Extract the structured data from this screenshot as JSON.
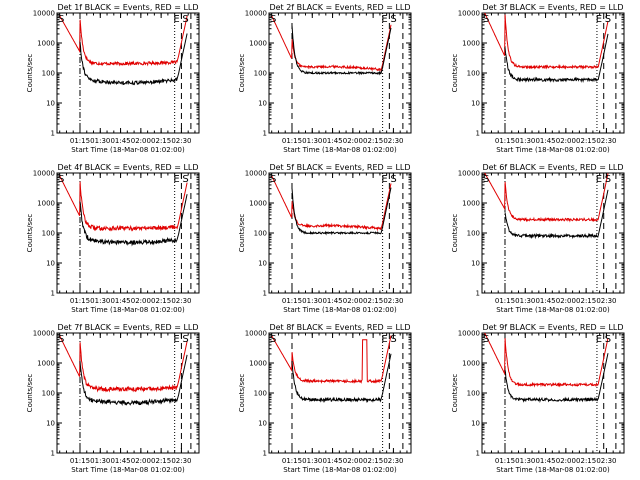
{
  "chart_data": {
    "type": "line",
    "colors": {
      "events": "#000000",
      "lld": "#e00000"
    },
    "x_tick_labels": [
      "01:15",
      "01:30",
      "01:45",
      "02:00",
      "02:15",
      "02:30"
    ],
    "x_tick_minutes": [
      75,
      90,
      105,
      120,
      135,
      150
    ],
    "xlim_minutes": [
      58,
      163
    ],
    "y_scale": "log",
    "ylim": [
      1,
      10000
    ],
    "y_tick_values": [
      1,
      10,
      100,
      1000,
      10000
    ],
    "y_tick_labels": [
      "1",
      "10",
      "100",
      "1000",
      "10000"
    ],
    "grid": false,
    "panels": [
      {
        "title": "Det 1f BLACK = Events, RED = LLD",
        "xlabel": "Start Time (18-Mar-08 01:02:00)",
        "ylabel": "Counts/sec",
        "markers": [
          "S",
          "E",
          "S"
        ],
        "events": {
          "start": 75,
          "end": 147,
          "level": 60,
          "rise": 1.3,
          "trend": 0,
          "dip": -0.1,
          "noise": 0.06
        },
        "lld": {
          "start": 60,
          "end": 147,
          "level": 230,
          "rise": 1.5,
          "trend": -0.05,
          "dip": 0,
          "noise": 0.05,
          "pre": 8000
        },
        "lines": [
          {
            "minute": 75,
            "style": "dashdot"
          },
          {
            "minute": 145,
            "style": "dotted"
          },
          {
            "minute": 150,
            "style": "dashed"
          },
          {
            "minute": 157,
            "style": "dashed"
          }
        ]
      },
      {
        "title": "Det 2f BLACK = Events, RED = LLD",
        "xlabel": "Start Time (18-Mar-08 01:02:00)",
        "ylabel": "Counts/sec",
        "markers": [
          "S",
          "E",
          "S"
        ],
        "events": {
          "start": 75,
          "end": 141,
          "level": 100,
          "rise": 1.6,
          "trend": 0,
          "dip": 0,
          "noise": 0.03
        },
        "lld": {
          "start": 60,
          "end": 141,
          "level": 130,
          "rise": 1.0,
          "trend": 0.1,
          "dip": 0,
          "noise": 0.04,
          "pre": 8000
        },
        "lines": [
          {
            "minute": 75,
            "style": "dashed"
          },
          {
            "minute": 142,
            "style": "dotted"
          },
          {
            "minute": 147,
            "style": "dashed"
          },
          {
            "minute": 157,
            "style": "dashed"
          }
        ]
      },
      {
        "title": "Det 3f BLACK = Events, RED = LLD",
        "xlabel": "Start Time (18-Mar-08 01:02:00)",
        "ylabel": "Counts/sec",
        "markers": [
          "S",
          "E",
          "S"
        ],
        "events": {
          "start": 75,
          "end": 144,
          "level": 60,
          "rise": 1.1,
          "trend": 0,
          "dip": 0,
          "noise": 0.05
        },
        "lld": {
          "start": 60,
          "end": 144,
          "level": 160,
          "rise": 1.8,
          "trend": 0,
          "dip": 0,
          "noise": 0.04,
          "pre": 10000
        },
        "lines": [
          {
            "minute": 75,
            "style": "dashdot"
          },
          {
            "minute": 143,
            "style": "dotted"
          },
          {
            "minute": 148,
            "style": "dashed"
          },
          {
            "minute": 157,
            "style": "dashed"
          }
        ]
      },
      {
        "title": "Det 4f BLACK = Events, RED = LLD",
        "xlabel": "Start Time (18-Mar-08 01:02:00)",
        "ylabel": "Counts/sec",
        "markers": [
          "S",
          "E",
          "S"
        ],
        "events": {
          "start": 75,
          "end": 147,
          "level": 60,
          "rise": 1.3,
          "trend": 0,
          "dip": -0.1,
          "noise": 0.07
        },
        "lld": {
          "start": 60,
          "end": 147,
          "level": 160,
          "rise": 1.6,
          "trend": -0.05,
          "dip": 0,
          "noise": 0.07,
          "pre": 8000
        },
        "lines": [
          {
            "minute": 75,
            "style": "dashdot"
          },
          {
            "minute": 145,
            "style": "dotted"
          },
          {
            "minute": 150,
            "style": "dashed"
          },
          {
            "minute": 157,
            "style": "dashed"
          }
        ]
      },
      {
        "title": "Det 5f BLACK = Events, RED = LLD",
        "xlabel": "Start Time (18-Mar-08 01:02:00)",
        "ylabel": "Counts/sec",
        "markers": [
          "S",
          "E",
          "S"
        ],
        "events": {
          "start": 75,
          "end": 141,
          "level": 100,
          "rise": 1.5,
          "trend": 0,
          "dip": 0,
          "noise": 0.03
        },
        "lld": {
          "start": 60,
          "end": 141,
          "level": 140,
          "rise": 0.9,
          "trend": 0.1,
          "dip": 0,
          "noise": 0.04,
          "pre": 8000
        },
        "lines": [
          {
            "minute": 75,
            "style": "dashed"
          },
          {
            "minute": 142,
            "style": "dotted"
          },
          {
            "minute": 147,
            "style": "dashed"
          },
          {
            "minute": 157,
            "style": "dashed"
          }
        ]
      },
      {
        "title": "Det 6f BLACK = Events, RED = LLD",
        "xlabel": "Start Time (18-Mar-08 01:02:00)",
        "ylabel": "Counts/sec",
        "markers": [
          "S",
          "E",
          "S"
        ],
        "events": {
          "start": 75,
          "end": 144,
          "level": 80,
          "rise": 0.8,
          "trend": 0,
          "dip": 0,
          "noise": 0.05
        },
        "lld": {
          "start": 60,
          "end": 144,
          "level": 280,
          "rise": 1.3,
          "trend": 0,
          "dip": 0,
          "noise": 0.04,
          "pre": 10000
        },
        "lines": [
          {
            "minute": 75,
            "style": "dashdot"
          },
          {
            "minute": 143,
            "style": "dotted"
          },
          {
            "minute": 148,
            "style": "dashed"
          },
          {
            "minute": 157,
            "style": "dashed"
          }
        ]
      },
      {
        "title": "Det 7f BLACK = Events, RED = LLD",
        "xlabel": "Start Time (18-Mar-08 01:02:00)",
        "ylabel": "Counts/sec",
        "markers": [
          "S",
          "E",
          "S"
        ],
        "events": {
          "start": 75,
          "end": 147,
          "level": 60,
          "rise": 1.3,
          "trend": 0,
          "dip": -0.1,
          "noise": 0.07
        },
        "lld": {
          "start": 60,
          "end": 147,
          "level": 150,
          "rise": 1.6,
          "trend": -0.05,
          "dip": 0,
          "noise": 0.07,
          "pre": 8000
        },
        "lines": [
          {
            "minute": 75,
            "style": "dashdot"
          },
          {
            "minute": 145,
            "style": "dotted"
          },
          {
            "minute": 150,
            "style": "dashed"
          },
          {
            "minute": 157,
            "style": "dashed"
          }
        ]
      },
      {
        "title": "Det 8f BLACK = Events, RED = LLD",
        "xlabel": "Start Time (18-Mar-08 01:02:00)",
        "ylabel": "Counts/sec",
        "markers": [
          "S",
          "E",
          "S"
        ],
        "events": {
          "start": 75,
          "end": 141,
          "level": 60,
          "rise": 1.3,
          "trend": 0,
          "dip": 0,
          "noise": 0.05
        },
        "lld": {
          "start": 60,
          "end": 141,
          "level": 250,
          "rise": 1.0,
          "trend": 0,
          "dip": 0,
          "noise": 0.04,
          "pre": 8000,
          "spike": {
            "from": 127,
            "to": 130.5,
            "level": 6000
          }
        },
        "lines": [
          {
            "minute": 75,
            "style": "dashed"
          },
          {
            "minute": 142,
            "style": "dotted"
          },
          {
            "minute": 147,
            "style": "dashed"
          },
          {
            "minute": 157,
            "style": "dashed"
          }
        ]
      },
      {
        "title": "Det 9f BLACK = Events, RED = LLD",
        "xlabel": "Start Time (18-Mar-08 01:02:00)",
        "ylabel": "Counts/sec",
        "markers": [
          "S",
          "E",
          "S"
        ],
        "events": {
          "start": 75,
          "end": 144,
          "level": 60,
          "rise": 1.0,
          "trend": 0,
          "dip": 0,
          "noise": 0.05
        },
        "lld": {
          "start": 60,
          "end": 144,
          "level": 190,
          "rise": 1.6,
          "trend": 0,
          "dip": 0,
          "noise": 0.04,
          "pre": 10000
        },
        "lines": [
          {
            "minute": 75,
            "style": "dashdot"
          },
          {
            "minute": 143,
            "style": "dotted"
          },
          {
            "minute": 148,
            "style": "dashed"
          },
          {
            "minute": 157,
            "style": "dashed"
          }
        ]
      }
    ]
  }
}
